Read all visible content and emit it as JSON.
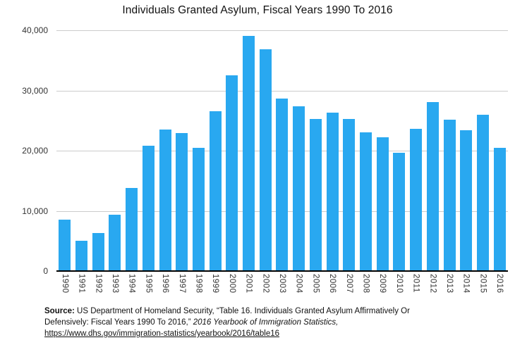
{
  "chart_data": {
    "type": "bar",
    "title": "Individuals Granted Asylum, Fiscal Years 1990 To 2016",
    "categories": [
      "1990",
      "1991",
      "1992",
      "1993",
      "1994",
      "1995",
      "1996",
      "1997",
      "1998",
      "1999",
      "2000",
      "2001",
      "2002",
      "2003",
      "2004",
      "2005",
      "2006",
      "2007",
      "2008",
      "2009",
      "2010",
      "2011",
      "2012",
      "2013",
      "2014",
      "2015",
      "2016"
    ],
    "values": [
      8500,
      5000,
      6300,
      9400,
      13800,
      20800,
      23500,
      22900,
      20500,
      26600,
      32500,
      39100,
      36900,
      28700,
      27400,
      25300,
      26300,
      25300,
      23000,
      22200,
      19700,
      23600,
      28100,
      25100,
      23400,
      26000,
      20500
    ],
    "xlabel": "",
    "ylabel": "",
    "ylim": [
      0,
      40000
    ],
    "y_tick_labels": [
      "40,000",
      "30,000",
      "20,000",
      "10,000",
      "0"
    ],
    "grid": "horizontal",
    "legend": "none",
    "bar_color": "#29a8f0",
    "grid_color": "#cccccc",
    "axis_color": "#000000",
    "tick_label_color": "#333333"
  },
  "footer": {
    "source_label": "Source:",
    "source_text": " US Department of Homeland Security, “Table 16. Individuals Granted Asylum Affirmatively Or Defensively: Fiscal Years 1990 To 2016,” ",
    "source_italic": "2016 Yearbook of Immigration Statistics,",
    "source_link": "https://www.dhs.gov/immigration-statistics/yearbook/2016/table16"
  }
}
